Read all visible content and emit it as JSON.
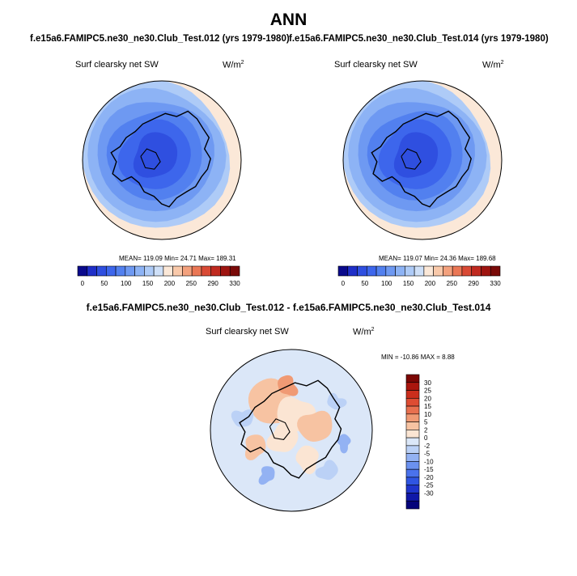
{
  "figure": {
    "title": "ANN",
    "diff_title": "f.e15a6.FAMIPC5.ne30_ne30.Club_Test.012 - f.e15a6.FAMIPC5.ne30_ne30.Club_Test.014"
  },
  "colors": {
    "land_outline": "#000000",
    "abs_palette": [
      "#0a0a8c",
      "#1f2fc8",
      "#2f4fe0",
      "#3d66ec",
      "#5280ef",
      "#6e99f2",
      "#8db3f5",
      "#aecbf7",
      "#cfe0f8",
      "#fbe8d8",
      "#f9c9aa",
      "#f3a17d",
      "#ea7755",
      "#d94a35",
      "#c02a20",
      "#9e1410",
      "#7a0a08"
    ],
    "diff_palette": [
      "#05047a",
      "#1018a8",
      "#1f35cc",
      "#2f55e2",
      "#4a72ec",
      "#6b91f0",
      "#93b2f3",
      "#bbd1f6",
      "#dbe7f8",
      "#fbe5d3",
      "#f7c3a2",
      "#f09a74",
      "#e8704f",
      "#de4c32",
      "#cb2e1c",
      "#aa160d",
      "#7c0704"
    ]
  },
  "chart_data": [
    {
      "type": "heatmap",
      "projection": "north-polar-stereographic",
      "case": "f.e15a6.FAMIPC5.ne30_ne30.Club_Test.012 (yrs 1979-1980)",
      "variable": "Surf clearsky net SW",
      "units": "W/m",
      "units_sup": "2",
      "stats": {
        "mean": 119.09,
        "min": 24.71,
        "max": 189.31
      },
      "stats_text": "MEAN= 119.09  Min=  24.71  Max= 189.31",
      "colorbar": {
        "orientation": "horizontal",
        "ticks": [
          "0",
          "50",
          "100",
          "150",
          "200",
          "250",
          "290",
          "330"
        ]
      }
    },
    {
      "type": "heatmap",
      "projection": "north-polar-stereographic",
      "case": "f.e15a6.FAMIPC5.ne30_ne30.Club_Test.014 (yrs 1979-1980)",
      "variable": "Surf clearsky net SW",
      "units": "W/m",
      "units_sup": "2",
      "stats": {
        "mean": 119.07,
        "min": 24.36,
        "max": 189.68
      },
      "stats_text": "MEAN= 119.07  Min=  24.36  Max= 189.68",
      "colorbar": {
        "orientation": "horizontal",
        "ticks": [
          "0",
          "50",
          "100",
          "150",
          "200",
          "250",
          "290",
          "330"
        ]
      }
    },
    {
      "type": "heatmap",
      "projection": "north-polar-stereographic",
      "case": "f.e15a6.FAMIPC5.ne30_ne30.Club_Test.012 - f.e15a6.FAMIPC5.ne30_ne30.Club_Test.014",
      "variable": "Surf clearsky net SW",
      "units": "W/m",
      "units_sup": "2",
      "stats": {
        "min": -10.86,
        "max": 8.88
      },
      "stats_text": "MIN = -10.86 MAX =   8.88",
      "colorbar": {
        "orientation": "vertical",
        "ticks": [
          "30",
          "25",
          "20",
          "15",
          "10",
          "5",
          "2",
          "0",
          "-2",
          "-5",
          "-10",
          "-15",
          "-20",
          "-25",
          "-30"
        ]
      }
    }
  ]
}
